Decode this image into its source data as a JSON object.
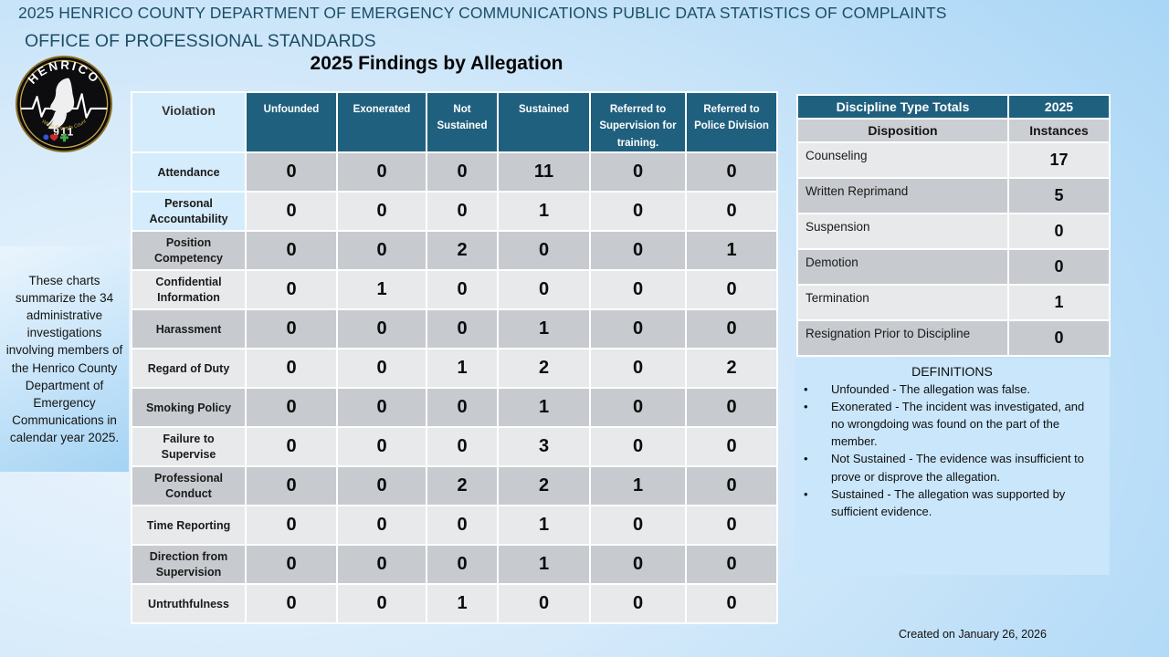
{
  "slide": {
    "title_line1": "2025 HENRICO COUNTY DEPARTMENT OF EMERGENCY COMMUNICATIONS PUBLIC DATA STATISTICS OF COMPLAINTS",
    "title_line2": "OFFICE OF PROFESSIONAL STANDARDS",
    "section_title": "2025 Findings by Allegation",
    "created_note": "Created on January 26, 2026"
  },
  "logo": {
    "arc_text": "HENRICO",
    "number": "911",
    "tagline": "When Seconds Count"
  },
  "sidebar_note": "These charts summarize the 34 administrative investigations involving members of the Henrico County Department of Emergency Communications in calendar year 2025.",
  "findings_table": {
    "columns": [
      "Violation",
      "Unfounded",
      "Exonerated",
      "Not Sustained",
      "Sustained",
      "Referred to Supervision for training.",
      "Referred to Police Division"
    ],
    "rows": [
      {
        "violation": "Attendance",
        "values": [
          "0",
          "0",
          "0",
          "11",
          "0",
          "0"
        ]
      },
      {
        "violation": "Personal Accountability",
        "values": [
          "0",
          "0",
          "0",
          "1",
          "0",
          "0"
        ]
      },
      {
        "violation": "Position Competency",
        "values": [
          "0",
          "0",
          "2",
          "0",
          "0",
          "1"
        ]
      },
      {
        "violation": "Confidential Information",
        "values": [
          "0",
          "1",
          "0",
          "0",
          "0",
          "0"
        ]
      },
      {
        "violation": "Harassment",
        "values": [
          "0",
          "0",
          "0",
          "1",
          "0",
          "0"
        ]
      },
      {
        "violation": "Regard of Duty",
        "values": [
          "0",
          "0",
          "1",
          "2",
          "0",
          "2"
        ]
      },
      {
        "violation": "Smoking Policy",
        "values": [
          "0",
          "0",
          "0",
          "1",
          "0",
          "0"
        ]
      },
      {
        "violation": "Failure to Supervise",
        "values": [
          "0",
          "0",
          "0",
          "3",
          "0",
          "0"
        ]
      },
      {
        "violation": "Professional Conduct",
        "values": [
          "0",
          "0",
          "2",
          "2",
          "1",
          "0"
        ]
      },
      {
        "violation": "Time Reporting",
        "values": [
          "0",
          "0",
          "0",
          "1",
          "0",
          "0"
        ]
      },
      {
        "violation": "Direction from Supervision",
        "values": [
          "0",
          "0",
          "0",
          "1",
          "0",
          "0"
        ]
      },
      {
        "violation": "Untruthfulness",
        "values": [
          "0",
          "0",
          "1",
          "0",
          "0",
          "0"
        ]
      }
    ]
  },
  "discipline_table": {
    "header": [
      "Discipline Type Totals",
      "2025"
    ],
    "subheader": [
      "Disposition",
      "Instances"
    ],
    "rows": [
      {
        "disposition": "Counseling",
        "instances": "17"
      },
      {
        "disposition": "Written Reprimand",
        "instances": "5"
      },
      {
        "disposition": "Suspension",
        "instances": "0"
      },
      {
        "disposition": "Demotion",
        "instances": "0"
      },
      {
        "disposition": "Termination",
        "instances": "1"
      },
      {
        "disposition": "Resignation Prior to Discipline",
        "instances": "0"
      }
    ]
  },
  "definitions": {
    "title": "DEFINITIONS",
    "items": [
      "Unfounded - The allegation was false.",
      "Exonerated - The incident was investigated, and no wrongdoing was found on the part of the member.",
      "Not Sustained - The evidence was insufficient to prove or disprove the allegation.",
      "Sustained - The allegation was supported by sufficient evidence."
    ]
  },
  "colors": {
    "header_teal": "#20607f",
    "light_blue_cell": "#d4ecfb",
    "row_light": "#e8e9eb",
    "row_dark": "#c7cacf",
    "subheader_gray": "#cbced2",
    "definitions_bg": "#c9e6fa",
    "title_text": "#1c4e66",
    "logo_gold": "#c9a84c"
  }
}
